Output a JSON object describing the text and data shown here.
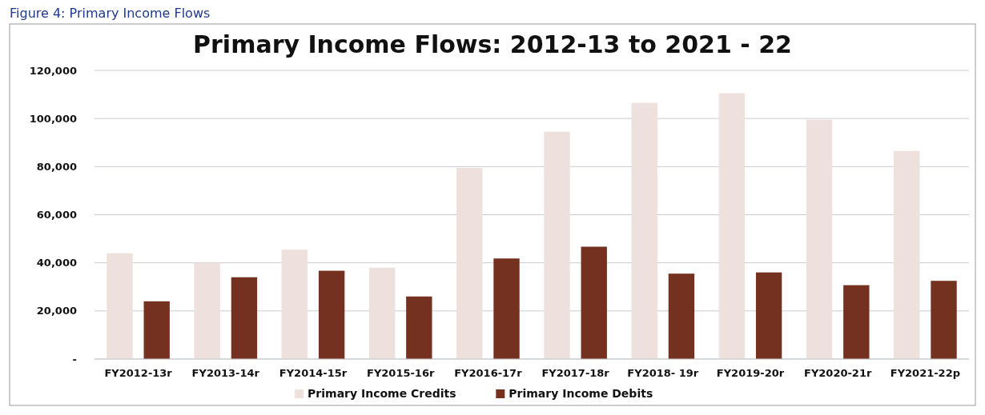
{
  "chart_data": {
    "type": "bar",
    "title": "Primary Income Flows: 2012-13 to 2021 - 22",
    "annotations": [
      "Figure 4: Primary Income Flows"
    ],
    "categories": [
      "FY2012-13r",
      "FY2013-14r",
      "FY2014-15r",
      "FY2015-16r",
      "FY2016-17r",
      "FY2017-18r",
      "FY2018- 19r",
      "FY2019-20r",
      "FY2020-21r",
      "FY2021-22p"
    ],
    "series": [
      {
        "name": "Primary Income Credits",
        "color": "#eee0dc",
        "values": [
          44000,
          40000,
          45500,
          38000,
          79500,
          94500,
          106500,
          110500,
          99500,
          86500
        ]
      },
      {
        "name": "Primary Income Debits",
        "color": "#75311f",
        "values": [
          24000,
          34000,
          36700,
          26000,
          41800,
          46700,
          35500,
          36000,
          30700,
          32500
        ]
      }
    ],
    "ylim": [
      0,
      120000
    ],
    "yticks": [
      {
        "value": 0,
        "label": "-"
      },
      {
        "value": 20000,
        "label": "20,000"
      },
      {
        "value": 40000,
        "label": "40,000"
      },
      {
        "value": 60000,
        "label": "60,000"
      },
      {
        "value": 80000,
        "label": "80,000"
      },
      {
        "value": 100000,
        "label": "100,000"
      },
      {
        "value": 120000,
        "label": "120,000"
      }
    ],
    "grid": "y",
    "legend": "bottom"
  }
}
